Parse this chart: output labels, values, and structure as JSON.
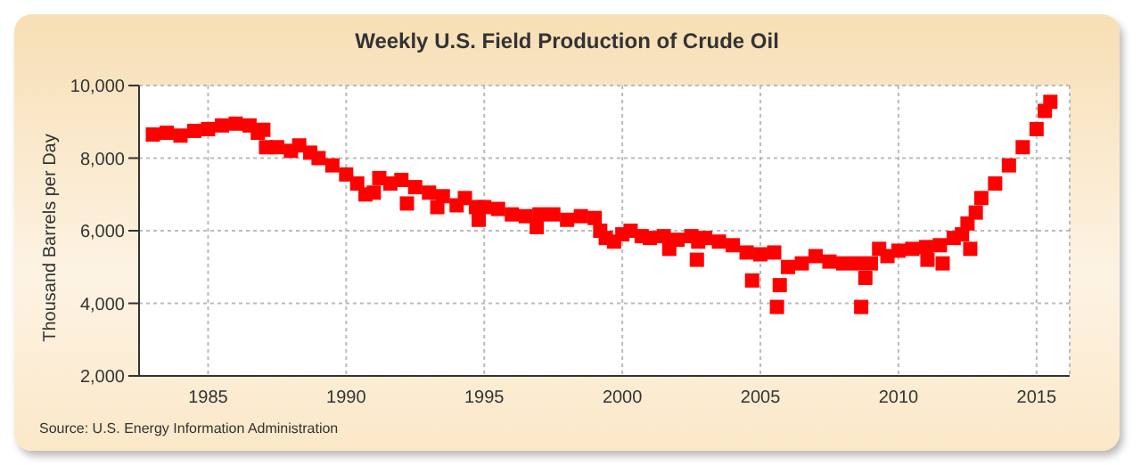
{
  "chart_data": {
    "type": "scatter",
    "title": "Weekly U.S. Field Production of Crude Oil",
    "ylabel": "Thousand Barrels per Day",
    "annotations": [
      "Source: U.S. Energy Information Administration"
    ],
    "x": [
      1983.0,
      1983.5,
      1984.0,
      1984.5,
      1985.0,
      1985.5,
      1986.0,
      1986.5,
      1986.8,
      1987.0,
      1987.1,
      1987.5,
      1988.0,
      1988.3,
      1988.7,
      1989.0,
      1989.5,
      1990.0,
      1990.4,
      1990.7,
      1991.0,
      1991.2,
      1991.6,
      1992.0,
      1992.2,
      1992.5,
      1993.0,
      1993.3,
      1993.5,
      1994.0,
      1994.3,
      1994.7,
      1994.8,
      1995.0,
      1995.5,
      1996.0,
      1996.5,
      1996.9,
      1997.0,
      1997.5,
      1998.0,
      1998.5,
      1999.0,
      1999.2,
      1999.4,
      1999.7,
      2000.0,
      2000.3,
      2000.7,
      2001.0,
      2001.5,
      2001.7,
      2002.0,
      2002.5,
      2002.7,
      2002.75,
      2003.0,
      2003.5,
      2004.0,
      2004.5,
      2004.7,
      2005.0,
      2005.5,
      2005.6,
      2005.7,
      2006.0,
      2006.5,
      2007.0,
      2007.5,
      2008.0,
      2008.5,
      2008.65,
      2008.8,
      2009.0,
      2009.3,
      2009.6,
      2010.0,
      2010.5,
      2011.0,
      2011.05,
      2011.5,
      2011.6,
      2012.0,
      2012.3,
      2012.5,
      2012.6,
      2012.8,
      2013.0,
      2013.5,
      2014.0,
      2014.5,
      2015.0,
      2015.3,
      2015.5
    ],
    "series": [
      {
        "color": "#ff0000",
        "values": [
          8650,
          8700,
          8620,
          8750,
          8800,
          8900,
          8950,
          8900,
          8700,
          8780,
          8300,
          8300,
          8200,
          8350,
          8150,
          8000,
          7800,
          7550,
          7300,
          7000,
          7050,
          7450,
          7300,
          7400,
          6750,
          7200,
          7050,
          6650,
          6950,
          6700,
          6900,
          6650,
          6300,
          6650,
          6600,
          6450,
          6400,
          6100,
          6450,
          6450,
          6300,
          6400,
          6350,
          6000,
          5800,
          5700,
          5900,
          6000,
          5850,
          5800,
          5850,
          5500,
          5750,
          5850,
          5200,
          5700,
          5800,
          5700,
          5600,
          5400,
          4630,
          5350,
          5400,
          3900,
          4500,
          5000,
          5100,
          5300,
          5150,
          5100,
          5100,
          3900,
          4700,
          5100,
          5500,
          5300,
          5450,
          5500,
          5550,
          5200,
          5600,
          5100,
          5800,
          5900,
          6200,
          5500,
          6500,
          6900,
          7300,
          7800,
          8300,
          8800,
          9300,
          9550
        ]
      }
    ],
    "xlim": [
      1982.5,
      2016.2
    ],
    "xticks": [
      1985,
      1990,
      1995,
      2000,
      2005,
      2010,
      2015
    ],
    "ylim": [
      2000,
      10000
    ],
    "yticks": [
      {
        "value": 2000,
        "label": "2,000"
      },
      {
        "value": 4000,
        "label": "4,000"
      },
      {
        "value": 6000,
        "label": "6,000"
      },
      {
        "value": 8000,
        "label": "8,000"
      },
      {
        "value": 10000,
        "label": "10,000"
      }
    ],
    "grid": true,
    "marker": "square"
  }
}
